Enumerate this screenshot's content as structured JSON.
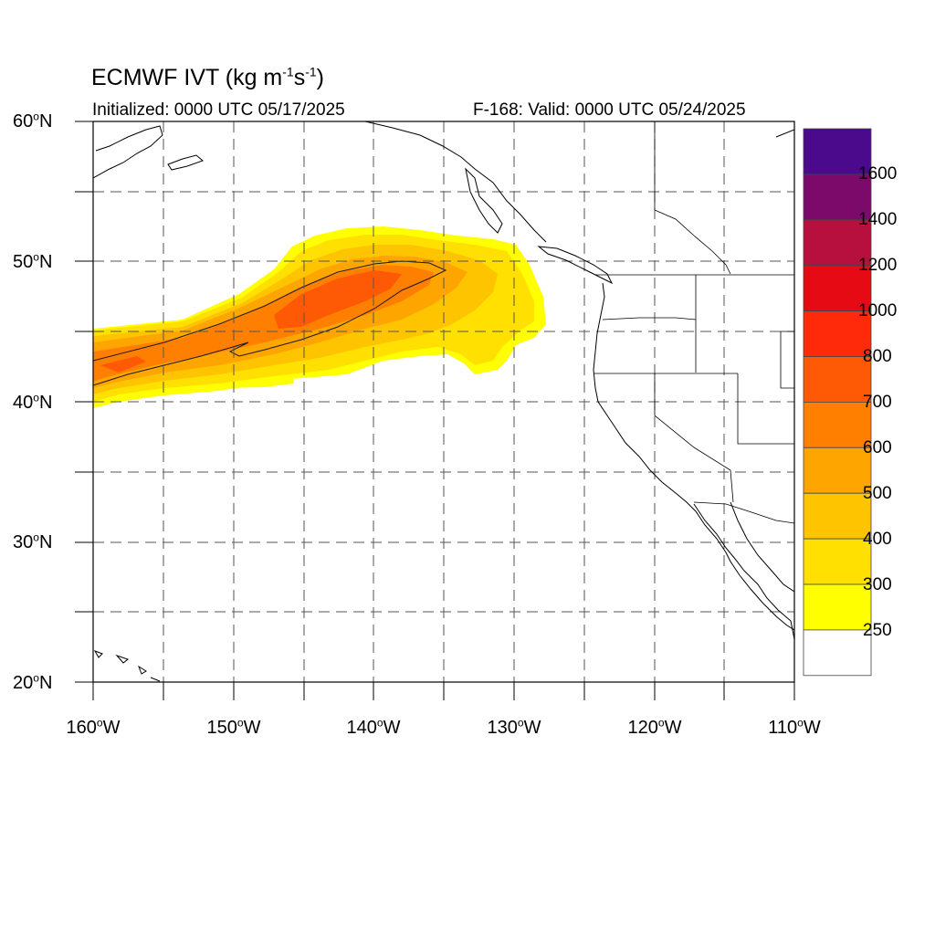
{
  "title": {
    "main": "ECMWF IVT (kg m",
    "sup1": "-1",
    "mid": "s",
    "sup2": "-1",
    "end": ")"
  },
  "subtitle": {
    "initialized": "Initialized: 0000 UTC 05/17/2025",
    "valid": "F-168: Valid: 0000 UTC 05/24/2025"
  },
  "axes": {
    "lat_labels": [
      {
        "num": "60",
        "suffix": "N"
      },
      {
        "num": "50",
        "suffix": "N"
      },
      {
        "num": "40",
        "suffix": "N"
      },
      {
        "num": "30",
        "suffix": "N"
      },
      {
        "num": "20",
        "suffix": "N"
      }
    ],
    "lon_labels": [
      {
        "num": "160",
        "suffix": "W"
      },
      {
        "num": "150",
        "suffix": "W"
      },
      {
        "num": "140",
        "suffix": "W"
      },
      {
        "num": "130",
        "suffix": "W"
      },
      {
        "num": "120",
        "suffix": "W"
      },
      {
        "num": "110",
        "suffix": "W"
      }
    ]
  },
  "colorbar": {
    "labels": [
      "1600",
      "1400",
      "1200",
      "1000",
      "800",
      "700",
      "600",
      "500",
      "400",
      "300",
      "250"
    ],
    "colors": [
      "#4b0a8c",
      "#7b0a6a",
      "#b8103e",
      "#e50a14",
      "#fe2a0a",
      "#fe5a05",
      "#ff8000",
      "#ffa500",
      "#ffc400",
      "#ffe000",
      "#ffff00",
      "#ffffff"
    ]
  }
}
